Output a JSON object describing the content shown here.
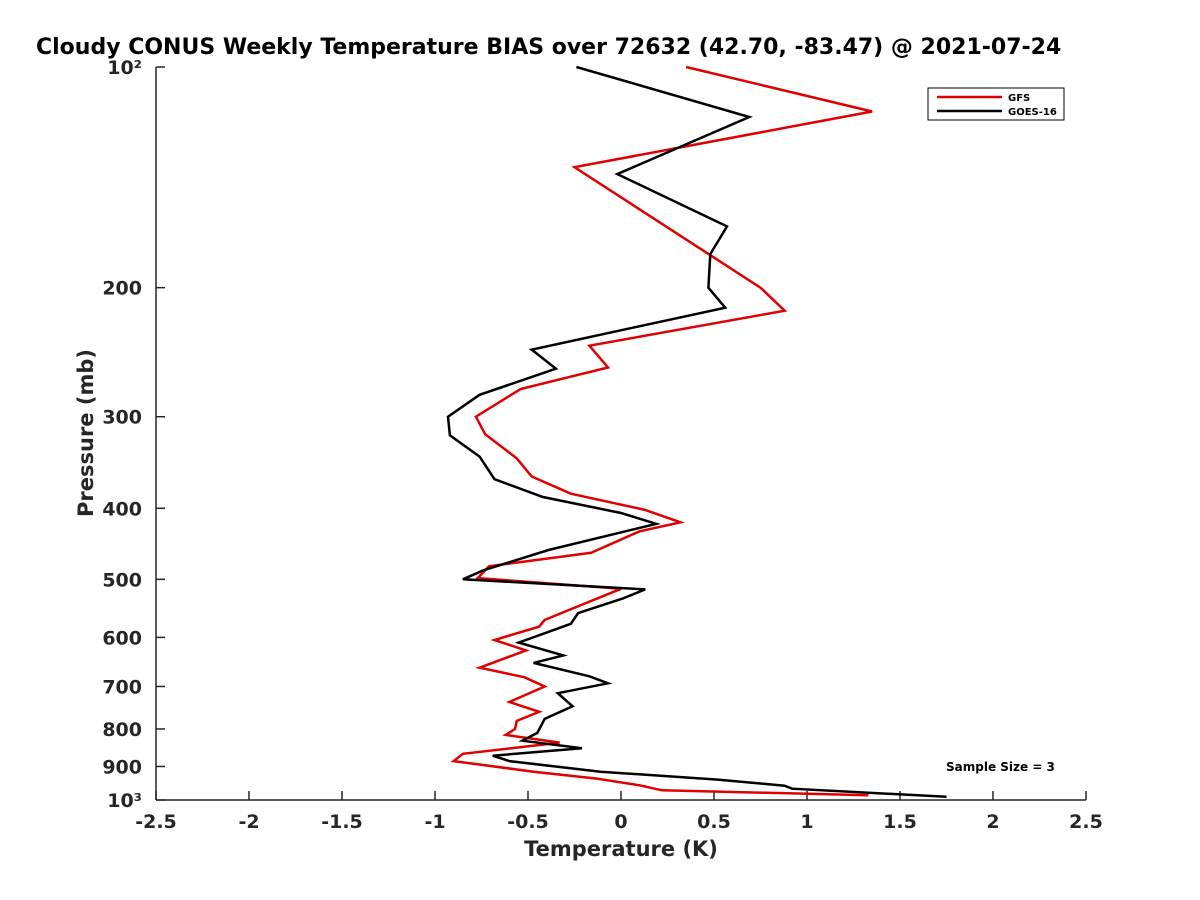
{
  "chart_data": {
    "type": "line",
    "title": "Cloudy CONUS Weekly Temperature BIAS over 72632 (42.70, -83.47) @ 2021-07-24",
    "xlabel": "Temperature (K)",
    "ylabel": "Pressure (mb)",
    "xlim": [
      -2.5,
      2.5
    ],
    "ylim": [
      100,
      1000
    ],
    "yscale": "log",
    "yreversed": true,
    "grid": false,
    "legend_position": "top-right",
    "xticks": [
      -2.5,
      -2,
      -1.5,
      -1,
      -0.5,
      0,
      0.5,
      1,
      1.5,
      2,
      2.5
    ],
    "xtick_labels": [
      "-2.5",
      "-2",
      "-1.5",
      "-1",
      "-0.5",
      "0",
      "0.5",
      "1",
      "1.5",
      "2",
      "2.5"
    ],
    "yticks": [
      100,
      200,
      300,
      400,
      500,
      600,
      700,
      800,
      900,
      1000
    ],
    "ytick_labels": [
      "10²",
      "200",
      "300",
      "400",
      "500",
      "600",
      "700",
      "800",
      "900",
      "10³"
    ],
    "annotation": "Sample Size = 3",
    "series": [
      {
        "name": "GFS",
        "color": "#e00000",
        "points": [
          [
            0.35,
            100
          ],
          [
            1.35,
            115
          ],
          [
            -0.25,
            137
          ],
          [
            0.75,
            200
          ],
          [
            0.88,
            215
          ],
          [
            -0.17,
            240
          ],
          [
            -0.07,
            257
          ],
          [
            -0.54,
            275
          ],
          [
            -0.78,
            300
          ],
          [
            -0.73,
            317
          ],
          [
            -0.56,
            342
          ],
          [
            -0.48,
            362
          ],
          [
            -0.27,
            382
          ],
          [
            0.13,
            402
          ],
          [
            0.32,
            418
          ],
          [
            0.1,
            430
          ],
          [
            -0.16,
            460
          ],
          [
            -0.71,
            480
          ],
          [
            -0.77,
            498
          ],
          [
            0.0,
            515
          ],
          [
            -0.41,
            568
          ],
          [
            -0.44,
            580
          ],
          [
            -0.68,
            605
          ],
          [
            -0.51,
            625
          ],
          [
            -0.76,
            660
          ],
          [
            -0.52,
            680
          ],
          [
            -0.41,
            700
          ],
          [
            -0.6,
            735
          ],
          [
            -0.44,
            758
          ],
          [
            -0.56,
            780
          ],
          [
            -0.57,
            800
          ],
          [
            -0.62,
            815
          ],
          [
            -0.33,
            835
          ],
          [
            -0.85,
            865
          ],
          [
            -0.9,
            885
          ],
          [
            -0.47,
            915
          ],
          [
            -0.13,
            935
          ],
          [
            0.1,
            955
          ],
          [
            0.22,
            970
          ],
          [
            1.33,
            985
          ]
        ]
      },
      {
        "name": "GOES-16",
        "color": "#000000",
        "points": [
          [
            -0.24,
            100
          ],
          [
            0.69,
            117
          ],
          [
            -0.02,
            140
          ],
          [
            0.57,
            165
          ],
          [
            0.48,
            180
          ],
          [
            0.47,
            200
          ],
          [
            0.56,
            213
          ],
          [
            -0.48,
            243
          ],
          [
            -0.35,
            258
          ],
          [
            -0.76,
            280
          ],
          [
            -0.93,
            300
          ],
          [
            -0.92,
            318
          ],
          [
            -0.76,
            340
          ],
          [
            -0.68,
            365
          ],
          [
            -0.42,
            386
          ],
          [
            0.0,
            406
          ],
          [
            0.19,
            420
          ],
          [
            -0.39,
            456
          ],
          [
            -0.74,
            486
          ],
          [
            -0.85,
            500
          ],
          [
            0.13,
            516
          ],
          [
            0.01,
            531
          ],
          [
            -0.23,
            556
          ],
          [
            -0.27,
            575
          ],
          [
            -0.55,
            610
          ],
          [
            -0.31,
            635
          ],
          [
            -0.47,
            650
          ],
          [
            -0.17,
            678
          ],
          [
            -0.07,
            693
          ],
          [
            -0.34,
            715
          ],
          [
            -0.26,
            745
          ],
          [
            -0.41,
            775
          ],
          [
            -0.45,
            810
          ],
          [
            -0.53,
            830
          ],
          [
            -0.21,
            850
          ],
          [
            -0.69,
            870
          ],
          [
            -0.6,
            885
          ],
          [
            -0.11,
            915
          ],
          [
            0.52,
            938
          ],
          [
            0.88,
            956
          ],
          [
            0.92,
            965
          ],
          [
            1.75,
            990
          ]
        ]
      }
    ]
  }
}
